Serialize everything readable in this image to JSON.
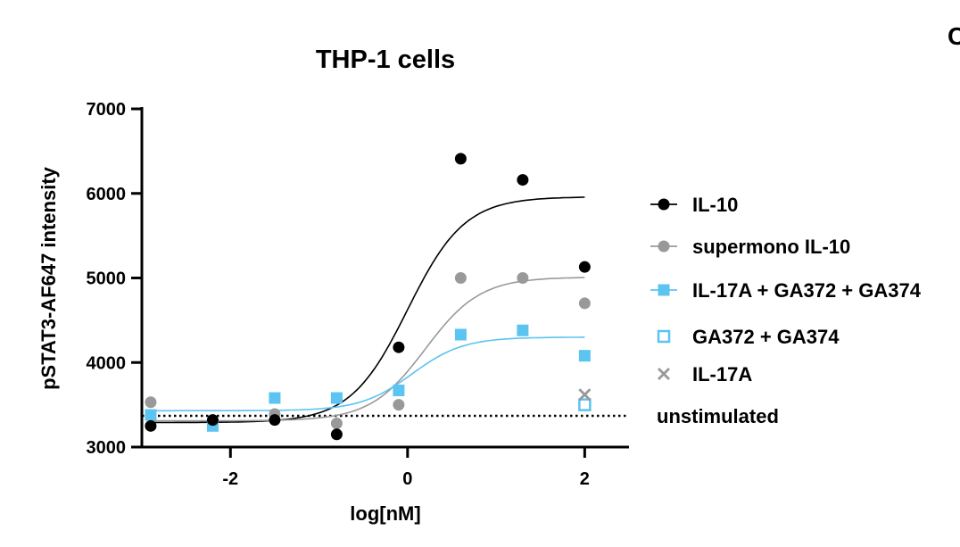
{
  "chart_data": {
    "type": "scatter",
    "title": "THP-1 cells",
    "xlabel": "log[nM]",
    "ylabel": "pSTAT3-AF647 intensity",
    "xlim": [
      -3,
      2.5
    ],
    "ylim": [
      3000,
      7000
    ],
    "xticks": [
      -2,
      0,
      2
    ],
    "yticks": [
      3000,
      4000,
      5000,
      6000,
      7000
    ],
    "xtick_labels": [
      "-2",
      "0",
      "2"
    ],
    "ytick_labels": [
      "3000",
      "4000",
      "5000",
      "6000",
      "7000"
    ],
    "grid": false,
    "legend_position": "right",
    "corner_letter": "C",
    "series": [
      {
        "name": "IL-10",
        "marker": "filled-circle",
        "color": "#000000",
        "x": [
          -2.9,
          -2.2,
          -1.5,
          -0.8,
          -0.1,
          0.6,
          1.3,
          2.0
        ],
        "y": [
          3250,
          3320,
          3320,
          3150,
          4180,
          6410,
          6160,
          5130
        ],
        "fit": {
          "bottom": 3290,
          "top": 5960,
          "ec50_log": 0.0,
          "hill": 1.35
        }
      },
      {
        "name": "supermono IL-10",
        "marker": "filled-circle",
        "color": "#999999",
        "x": [
          -2.9,
          -2.2,
          -1.5,
          -0.8,
          -0.1,
          0.6,
          1.3,
          2.0
        ],
        "y": [
          3530,
          3260,
          3390,
          3280,
          3500,
          5000,
          5000,
          4700
        ],
        "fit": {
          "bottom": 3310,
          "top": 5010,
          "ec50_log": 0.2,
          "hill": 1.4
        }
      },
      {
        "name": "IL-17A + GA372 + GA374",
        "marker": "filled-square",
        "color": "#5bc4f0",
        "x": [
          -2.9,
          -2.2,
          -1.5,
          -0.8,
          -0.1,
          0.6,
          1.3,
          2.0
        ],
        "y": [
          3380,
          3250,
          3580,
          3580,
          3670,
          4330,
          4380,
          4080
        ],
        "fit": {
          "bottom": 3430,
          "top": 4300,
          "ec50_log": 0.05,
          "hill": 1.5
        }
      },
      {
        "name": "GA372 + GA374",
        "marker": "open-square",
        "color": "#5bc4f0",
        "x": [
          2.0
        ],
        "y": [
          3500
        ]
      },
      {
        "name": "IL-17A",
        "marker": "cross",
        "color": "#999999",
        "x": [
          2.0
        ],
        "y": [
          3620
        ]
      }
    ],
    "reference_line": {
      "name": "unstimulated",
      "y": 3370,
      "style": "dotted",
      "color": "#000000"
    }
  }
}
